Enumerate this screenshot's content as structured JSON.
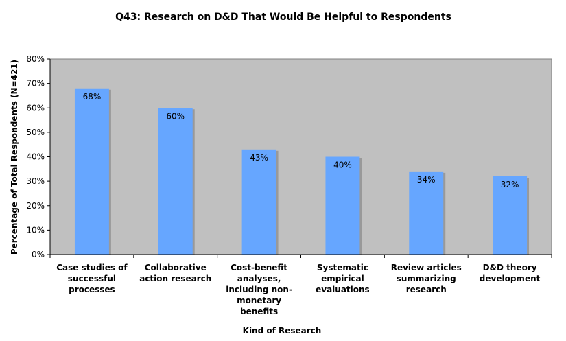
{
  "chart_data": {
    "type": "bar",
    "title": "Q43: Research on D&D That Would Be Helpful to Respondents",
    "xlabel": "Kind of Research",
    "ylabel": "Percentage of Total Respondents (N=421)",
    "ylim": [
      0,
      80
    ],
    "yticks": [
      0,
      10,
      20,
      30,
      40,
      50,
      60,
      70,
      80
    ],
    "ytick_labels": [
      "0%",
      "10%",
      "20%",
      "30%",
      "40%",
      "50%",
      "60%",
      "70%",
      "80%"
    ],
    "categories": [
      [
        "Case studies of",
        "successful",
        "processes"
      ],
      [
        "Collaborative",
        "action research"
      ],
      [
        "Cost-benefit",
        "analyses,",
        "including non-",
        "monetary",
        "benefits"
      ],
      [
        "Systematic",
        "empirical",
        "evaluations"
      ],
      [
        "Review articles",
        "summarizing",
        "research"
      ],
      [
        "D&D theory",
        "development"
      ]
    ],
    "values": [
      68,
      60,
      43,
      40,
      34,
      32
    ],
    "data_labels": [
      "68%",
      "60%",
      "43%",
      "40%",
      "34%",
      "32%"
    ],
    "grid": false,
    "legend": "none",
    "colors": {
      "bar": "#66a6ff",
      "bar_shadow": "#999999",
      "plot_background": "#c0c0c0"
    }
  }
}
